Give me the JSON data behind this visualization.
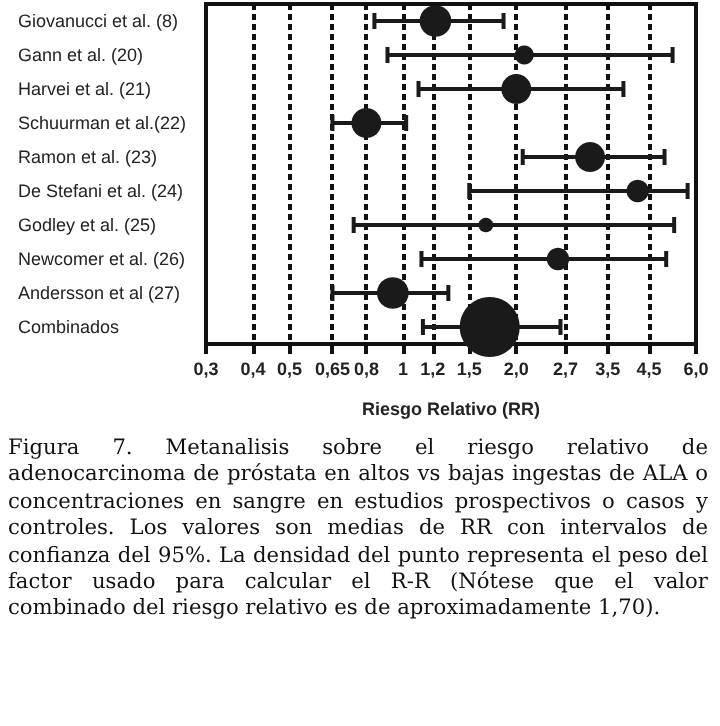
{
  "chart_data": {
    "type": "bubble",
    "orientation": "horizontal",
    "categories": [
      "Giovanucci et al. (8)",
      "Gann et al. (20)",
      "Harvei et al. (21)",
      "Schuurman et al.(22)",
      "Ramon et al. (23)",
      "De Stefani et al. (24)",
      "Godley et al. (25)",
      "Newcomer et al. (26)",
      "Andersson et al (27)",
      "Combinados"
    ],
    "values": [
      1.22,
      2.1,
      2.0,
      0.8,
      3.14,
      4.2,
      1.66,
      2.58,
      0.94,
      1.7
    ],
    "errors": [
      [
        0.84,
        1.85
      ],
      [
        0.91,
        5.2
      ],
      [
        1.1,
        3.85
      ],
      [
        0.65,
        1.02
      ],
      [
        2.08,
        4.95
      ],
      [
        1.5,
        5.7
      ],
      [
        0.74,
        5.25
      ],
      [
        1.12,
        5.0
      ],
      [
        0.65,
        1.32
      ],
      [
        1.13,
        2.62
      ]
    ],
    "sizes": [
      0.28,
      0.1,
      0.25,
      0.25,
      0.25,
      0.14,
      0.06,
      0.14,
      0.28,
      1
    ],
    "color": "#1a1a1a",
    "xlabel": "Riesgo Relativo (RR)",
    "log": "x",
    "xlim": [
      0.3,
      6.0
    ],
    "xticks": [
      {
        "value": 0.3,
        "label": "0,3"
      },
      {
        "value": 0.4,
        "label": "0,4"
      },
      {
        "value": 0.5,
        "label": "0,5"
      },
      {
        "value": 0.65,
        "label": "0,65"
      },
      {
        "value": 0.8,
        "label": "0,8"
      },
      1,
      {
        "value": 1.2,
        "label": "1,2"
      },
      {
        "value": 1.5,
        "label": "1,5"
      },
      {
        "value": 2.0,
        "label": "2,0"
      },
      {
        "value": 2.7,
        "label": "2,7"
      },
      {
        "value": 3.5,
        "label": "3,5"
      },
      {
        "value": 4.5,
        "label": "4,5"
      },
      {
        "value": 6.0,
        "label": "6,0"
      }
    ],
    "grid": "x",
    "annotations": [
      "Figura 7. Metanalisis sobre el riesgo relativo de adenocarcinoma de próstata en altos vs bajas ingestas de ALA o concentraciones en sangre en estudios prospectivos o casos y controles. Los valores son medias de RR con intervalos de confianza del 95%. La densidad del punto representa el peso del factor usado para calcular el R-R (Nótese que el valor combinado del riesgo relativo es de aproximadamente 1,70)."
    ]
  }
}
